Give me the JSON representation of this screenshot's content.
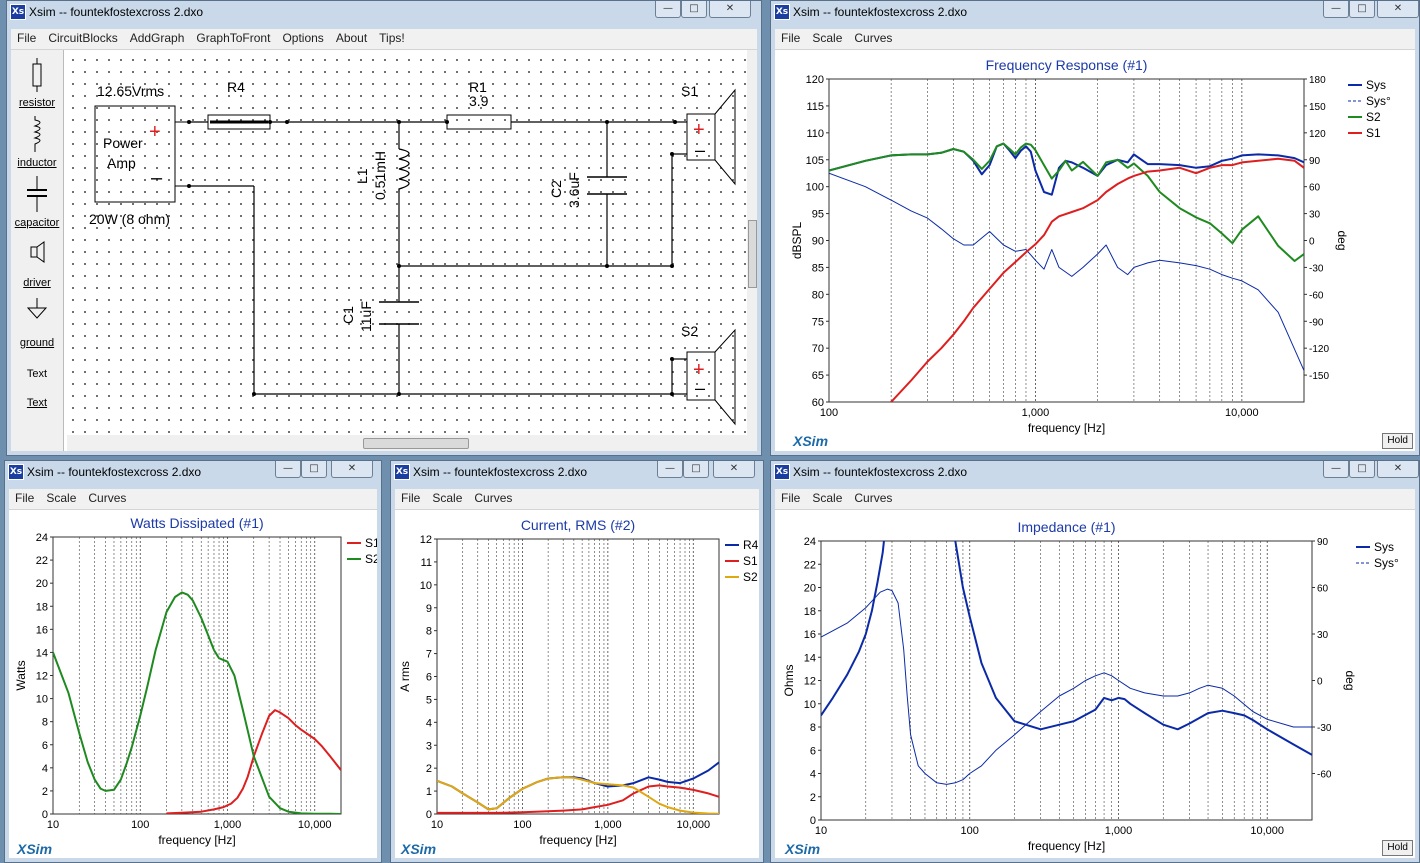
{
  "windows": {
    "schematic": {
      "title": "Xsim -- fountekfostexcross 2.dxo",
      "menu": [
        "File",
        "CircuitBlocks",
        "AddGraph",
        "GraphToFront",
        "Options",
        "About",
        "Tips!"
      ],
      "tools": [
        "resistor",
        "inductor",
        "capacitor",
        "driver",
        "ground",
        "Text",
        "Text"
      ],
      "labels": {
        "voltage": "12.65Vrms",
        "amp_line1": "Power",
        "amp_line2": "Amp",
        "power": "20W (8 ohm)",
        "r4": "R4",
        "r1": "R1",
        "r1_val": "3.9",
        "l1": "L1",
        "l1_val": "0.51mH",
        "c2": "C2",
        "c2_val": "3.6uF",
        "c1": "C1",
        "c1_val": "11uF",
        "s1": "S1",
        "s2": "S2",
        "plus": "+",
        "minus": "–"
      }
    },
    "freq": {
      "title": "Xsim -- fountekfostexcross 2.dxo",
      "menu": [
        "File",
        "Scale",
        "Curves"
      ],
      "hold": "Hold",
      "xsim": "XSim"
    },
    "watts": {
      "title": "Xsim -- fountekfostexcross 2.dxo",
      "menu": [
        "File",
        "Scale",
        "Curves"
      ],
      "xsim": "XSim"
    },
    "current": {
      "title": "Xsim -- fountekfostexcross 2.dxo",
      "menu": [
        "File",
        "Scale",
        "Curves"
      ],
      "xsim": "XSim"
    },
    "imped": {
      "title": "Xsim -- fountekfostexcross 2.dxo",
      "menu": [
        "File",
        "Scale",
        "Curves"
      ],
      "hold": "Hold",
      "xsim": "XSim"
    }
  },
  "colors": {
    "blue": "#0b2aa8",
    "red": "#dd1f1f",
    "green": "#1f8a1f",
    "orange": "#e0a810",
    "title": "#1c3aa8",
    "xsim": "#1c6aa8"
  },
  "chart_data": [
    {
      "id": "freq",
      "type": "line",
      "title": "Frequency Response (#1)",
      "xlabel": "frequency [Hz]",
      "ylabel": "dBSPL",
      "y2label": "deg",
      "xscale": "log",
      "xlim": [
        100,
        20000
      ],
      "ylim": [
        60,
        120
      ],
      "y2lim": [
        -180,
        180
      ],
      "xticks": [
        100,
        1000,
        10000
      ],
      "xticklabels": [
        "100",
        "1,000",
        "10,000"
      ],
      "yticks": [
        60,
        65,
        70,
        75,
        80,
        85,
        90,
        95,
        100,
        105,
        110,
        115,
        120
      ],
      "y2ticks": [
        -150,
        -120,
        -90,
        -60,
        -30,
        0,
        30,
        60,
        90,
        120,
        150,
        180
      ],
      "legend_position": "top-right",
      "series": [
        {
          "name": "Sys",
          "color": "#0b2aa8",
          "width": 2,
          "x": [
            100,
            150,
            200,
            250,
            300,
            350,
            400,
            450,
            500,
            550,
            600,
            650,
            700,
            750,
            800,
            850,
            900,
            950,
            1000,
            1100,
            1200,
            1300,
            1400,
            1500,
            1700,
            2000,
            2200,
            2500,
            2800,
            3000,
            3500,
            4000,
            5000,
            6000,
            7000,
            8000,
            9000,
            10000,
            12000,
            15000,
            18000,
            20000
          ],
          "y": [
            103,
            104.8,
            105.8,
            106,
            106,
            106.3,
            107,
            106.5,
            104.8,
            102.3,
            104,
            107.5,
            108,
            106.7,
            105.3,
            106.7,
            107.5,
            106.5,
            103,
            99,
            98.5,
            103.5,
            104.8,
            104.5,
            103.5,
            102,
            104,
            105,
            104.5,
            106,
            104.2,
            104.2,
            104,
            103.5,
            103.8,
            104.8,
            105.2,
            105.8,
            106,
            105.8,
            105.3,
            104.5
          ]
        },
        {
          "name": "Sys°",
          "color": "#0b2aa8",
          "width": 1,
          "dash": true,
          "x": [
            100,
            150,
            200,
            250,
            300,
            350,
            400,
            450,
            500,
            600,
            700,
            800,
            900,
            1000,
            1100,
            1200,
            1300,
            1500,
            1700,
            2000,
            2200,
            2500,
            2800,
            3000,
            3500,
            4000,
            5000,
            6000,
            7000,
            8000,
            9000,
            10000,
            12000,
            15000,
            20000
          ],
          "y": [
            75,
            60,
            45,
            33,
            25,
            13,
            2,
            -5,
            -5,
            10,
            -5,
            -12,
            -10,
            -22,
            -32,
            -10,
            -30,
            -40,
            -30,
            -15,
            -5,
            -30,
            -38,
            -30,
            -25,
            -22,
            -25,
            -28,
            -32,
            -38,
            -42,
            -45,
            -55,
            -80,
            -145
          ]
        },
        {
          "name": "S2",
          "color": "#1f8a1f",
          "width": 2,
          "x": [
            100,
            150,
            200,
            250,
            300,
            350,
            400,
            450,
            500,
            550,
            600,
            650,
            700,
            750,
            800,
            850,
            900,
            950,
            1000,
            1100,
            1200,
            1300,
            1400,
            1500,
            1700,
            2000,
            2200,
            2500,
            2800,
            3000,
            3500,
            4000,
            5000,
            6000,
            7000,
            8000,
            9000,
            10000,
            12000,
            15000,
            18000,
            20000
          ],
          "y": [
            103,
            104.8,
            105.8,
            106,
            106,
            106.3,
            107,
            106.5,
            105,
            103.3,
            104.8,
            107.5,
            108,
            107,
            106,
            107.3,
            108,
            107.8,
            106.8,
            104,
            101.5,
            103,
            104.8,
            103,
            104.6,
            102,
            104.5,
            105,
            103.5,
            104.3,
            102,
            99,
            96,
            94.3,
            93.2,
            91.3,
            89.5,
            92,
            94.5,
            89,
            86.2,
            87.5
          ]
        },
        {
          "name": "S1",
          "color": "#dd1f1f",
          "width": 2,
          "x": [
            200,
            250,
            300,
            350,
            400,
            450,
            500,
            600,
            700,
            800,
            900,
            1000,
            1100,
            1200,
            1300,
            1500,
            1700,
            2000,
            2200,
            2500,
            2800,
            3000,
            3500,
            4000,
            5000,
            6000,
            7000,
            8000,
            9000,
            10000,
            12000,
            15000,
            18000,
            20000
          ],
          "y": [
            60,
            64,
            67.5,
            70,
            72.5,
            75,
            77.5,
            81,
            84,
            86,
            87.8,
            89.3,
            91,
            93.5,
            94.5,
            95.3,
            96,
            97.5,
            99,
            100.5,
            101.5,
            102,
            102.8,
            103,
            103.5,
            102.5,
            103.5,
            104,
            104,
            104.5,
            104.8,
            105.2,
            104.8,
            103.5
          ]
        }
      ]
    },
    {
      "id": "watts",
      "type": "line",
      "title": "Watts Dissipated (#1)",
      "xlabel": "frequency [Hz]",
      "ylabel": "Watts",
      "xscale": "log",
      "xlim": [
        10,
        20000
      ],
      "ylim": [
        0,
        24
      ],
      "xticks": [
        10,
        100,
        1000,
        10000
      ],
      "xticklabels": [
        "10",
        "100",
        "1,000",
        "10,000"
      ],
      "yticks": [
        0,
        2,
        4,
        6,
        8,
        10,
        12,
        14,
        16,
        18,
        20,
        22,
        24
      ],
      "legend_position": "top-right",
      "series": [
        {
          "name": "S1",
          "color": "#dd1f1f",
          "width": 2,
          "x": [
            200,
            300,
            500,
            700,
            900,
            1100,
            1300,
            1500,
            1700,
            2000,
            2500,
            3000,
            3500,
            4000,
            5000,
            6000,
            7000,
            8000,
            10000,
            12000,
            15000,
            20000
          ],
          "y": [
            0.05,
            0.1,
            0.2,
            0.4,
            0.6,
            0.9,
            1.4,
            2.2,
            3.2,
            5,
            7,
            8.5,
            9,
            8.8,
            8.3,
            7.7,
            7.3,
            7,
            6.5,
            5.9,
            5,
            3.8
          ]
        },
        {
          "name": "S2",
          "color": "#1f8a1f",
          "width": 2,
          "x": [
            10,
            15,
            20,
            25,
            30,
            35,
            40,
            50,
            60,
            70,
            80,
            100,
            120,
            150,
            200,
            250,
            300,
            350,
            400,
            500,
            600,
            700,
            800,
            1000,
            1200,
            1500,
            2000,
            3000,
            4000,
            5000,
            7000,
            10000,
            15000,
            20000
          ],
          "y": [
            14,
            10.5,
            7,
            4.5,
            3,
            2.2,
            2,
            2.1,
            3,
            4.4,
            5.8,
            8.5,
            11,
            14.2,
            17.5,
            18.8,
            19.2,
            19,
            18.5,
            17,
            15.5,
            14.2,
            13.5,
            13.2,
            12,
            9,
            5,
            1.5,
            0.5,
            0.2,
            0.05,
            0.02,
            0.02,
            0
          ]
        }
      ]
    },
    {
      "id": "current",
      "type": "line",
      "title": "Current, RMS (#2)",
      "xlabel": "frequency [Hz]",
      "ylabel": "A rms",
      "xscale": "log",
      "xlim": [
        10,
        20000
      ],
      "ylim": [
        0,
        12
      ],
      "xticks": [
        10,
        100,
        1000,
        10000
      ],
      "xticklabels": [
        "10",
        "100",
        "1,000",
        "10,000"
      ],
      "yticks": [
        0,
        1,
        2,
        3,
        4,
        5,
        6,
        7,
        8,
        9,
        10,
        11,
        12
      ],
      "legend_position": "top-right",
      "series": [
        {
          "name": "R4",
          "color": "#0b2aa8",
          "width": 2,
          "x": [
            10,
            15,
            20,
            30,
            40,
            50,
            70,
            100,
            150,
            200,
            300,
            400,
            500,
            700,
            1000,
            1500,
            2000,
            3000,
            4000,
            5000,
            7000,
            10000,
            15000,
            20000
          ],
          "y": [
            1.45,
            1.2,
            0.9,
            0.5,
            0.2,
            0.25,
            0.7,
            1.1,
            1.4,
            1.55,
            1.6,
            1.6,
            1.55,
            1.35,
            1.2,
            1.25,
            1.35,
            1.6,
            1.5,
            1.4,
            1.35,
            1.55,
            1.9,
            2.25
          ]
        },
        {
          "name": "S1",
          "color": "#dd1f1f",
          "width": 2,
          "x": [
            10,
            20,
            50,
            100,
            200,
            300,
            500,
            700,
            1000,
            1500,
            2000,
            3000,
            4000,
            5000,
            7000,
            10000,
            15000,
            20000
          ],
          "y": [
            0.05,
            0.05,
            0.05,
            0.08,
            0.12,
            0.15,
            0.2,
            0.3,
            0.4,
            0.6,
            0.9,
            1.2,
            1.25,
            1.2,
            1.15,
            1.05,
            0.9,
            0.75
          ]
        },
        {
          "name": "S2",
          "color": "#e0a810",
          "width": 2,
          "x": [
            10,
            15,
            20,
            30,
            40,
            50,
            70,
            100,
            150,
            200,
            300,
            400,
            500,
            700,
            1000,
            1500,
            2000,
            3000,
            4000,
            5000,
            7000,
            10000,
            15000,
            20000
          ],
          "y": [
            1.45,
            1.2,
            0.9,
            0.5,
            0.2,
            0.25,
            0.7,
            1.1,
            1.4,
            1.55,
            1.6,
            1.58,
            1.5,
            1.35,
            1.3,
            1.25,
            1.15,
            0.75,
            0.45,
            0.3,
            0.15,
            0.06,
            0.02,
            0.01
          ]
        }
      ]
    },
    {
      "id": "imped",
      "type": "line",
      "title": "Impedance (#1)",
      "xlabel": "frequency [Hz]",
      "ylabel": "Ohms",
      "y2label": "deg",
      "xscale": "log",
      "xlim": [
        10,
        20000
      ],
      "ylim": [
        0,
        24
      ],
      "y2lim": [
        -90,
        90
      ],
      "xticks": [
        10,
        100,
        1000,
        10000
      ],
      "xticklabels": [
        "10",
        "100",
        "1,000",
        "10,000"
      ],
      "yticks": [
        0,
        2,
        4,
        6,
        8,
        10,
        12,
        14,
        16,
        18,
        20,
        22,
        24
      ],
      "y2ticks": [
        -60,
        -30,
        0,
        30,
        60,
        90
      ],
      "legend_position": "top-right",
      "series": [
        {
          "name": "Sys",
          "color": "#0b2aa8",
          "width": 2,
          "x": [
            10,
            12,
            15,
            18,
            20,
            22,
            24,
            26,
            27,
            28,
            29,
            30,
            32,
            35,
            40,
            45,
            50,
            55,
            60,
            65,
            70,
            75,
            80,
            90,
            100,
            120,
            150,
            200,
            300,
            400,
            500,
            700,
            800,
            900,
            1000,
            1100,
            1200,
            1500,
            2000,
            2500,
            3000,
            4000,
            5000,
            6000,
            7000,
            8000,
            10000,
            15000,
            20000
          ],
          "y": [
            9,
            10.5,
            12.5,
            14.5,
            16,
            18,
            20.5,
            23,
            25,
            28,
            32,
            40,
            45,
            40,
            35,
            40,
            45,
            45,
            40,
            35,
            30,
            25,
            24,
            20,
            17.5,
            13.5,
            10.5,
            8.5,
            7.8,
            8.2,
            8.5,
            9.5,
            10.5,
            10.3,
            10.5,
            10.4,
            10,
            9.2,
            8.2,
            7.8,
            8.3,
            9.2,
            9.4,
            9.2,
            9,
            8.6,
            7.8,
            6.5,
            5.6
          ]
        },
        {
          "name": "Sys°",
          "color": "#0b2aa8",
          "width": 1,
          "dash": true,
          "x": [
            10,
            15,
            20,
            25,
            28,
            30,
            33,
            36,
            38,
            40,
            45,
            50,
            60,
            70,
            80,
            90,
            100,
            120,
            150,
            200,
            300,
            400,
            500,
            600,
            700,
            800,
            900,
            1000,
            1200,
            1500,
            2000,
            2500,
            3000,
            3500,
            4000,
            5000,
            6000,
            8000,
            10000,
            15000,
            20000
          ],
          "y": [
            28,
            37,
            47,
            57,
            59,
            58,
            50,
            20,
            -10,
            -35,
            -55,
            -60,
            -66,
            -67,
            -66,
            -64,
            -60,
            -55,
            -45,
            -35,
            -20,
            -10,
            -5,
            0,
            3,
            5,
            3,
            0,
            -5,
            -8,
            -10,
            -10,
            -8,
            -5,
            -3,
            -5,
            -10,
            -20,
            -25,
            -30,
            -30
          ]
        }
      ]
    }
  ]
}
